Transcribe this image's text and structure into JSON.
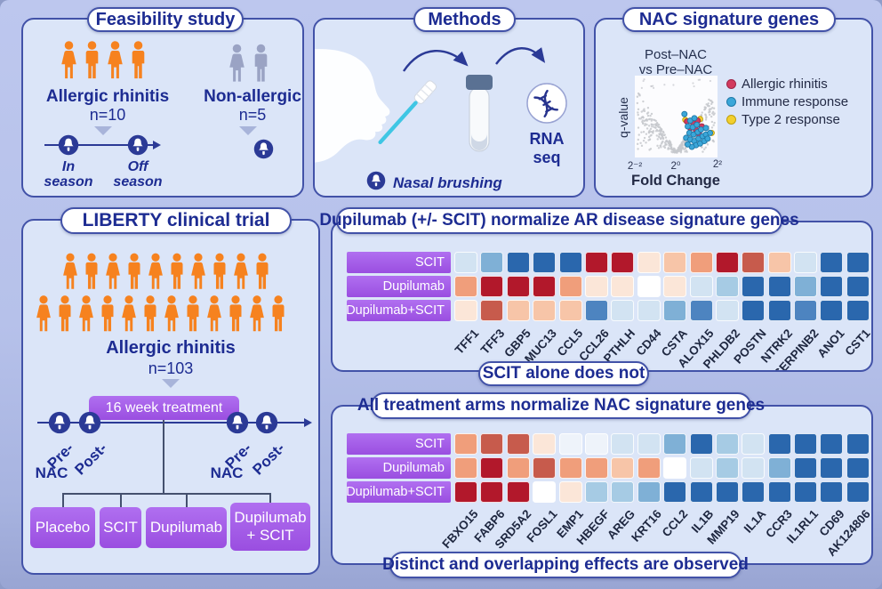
{
  "colors": {
    "navy": "#1d2c92",
    "panel_border": "#4252a8",
    "panel_bg": "#dbe5f8",
    "purple": "#a35ce6",
    "orange": "#f6821f",
    "gray_person": "#9aa3c4",
    "connector": "#44506e",
    "triangle": "#a8b4da",
    "brush_cyan": "#3fc6e4",
    "legend_red": "#d23a5e",
    "legend_blue": "#3ba7d9",
    "legend_yellow": "#f2cf2e",
    "heat": {
      "DR": "#b2182b",
      "MR": "#c75b4c",
      "SA": "#f09e7b",
      "LP": "#f7c5a8",
      "VP": "#fbe6d8",
      "WH": "#ffffff",
      "VB": "#eef3fa",
      "PB": "#d2e3f2",
      "LB": "#a6cbe4",
      "SB": "#7fb0d6",
      "MB": "#4d84c0",
      "DB": "#2a67ad"
    }
  },
  "panels": {
    "feasibility": {
      "title": "Feasibility study",
      "allergic_label": "Allergic rhinitis",
      "allergic_n": "n=10",
      "nonallergic_label": "Non-allergic",
      "nonallergic_n": "n=5",
      "in_1": "In",
      "in_2": "season",
      "off_1": "Off",
      "off_2": "season",
      "allergic_people": [
        "F",
        "M",
        "F",
        "M"
      ],
      "nonallergic_people": [
        "F",
        "M"
      ]
    },
    "methods": {
      "title": "Methods",
      "rna_1": "RNA",
      "rna_2": "seq",
      "caption": "Nasal brushing"
    },
    "nac": {
      "title": "NAC signature genes"
    },
    "liberty": {
      "title": "LIBERTY clinical trial",
      "label": "Allergic rhinitis",
      "n": "n=103",
      "row1": [
        "F",
        "M",
        "F",
        "M",
        "F",
        "M",
        "F",
        "M",
        "F",
        "M"
      ],
      "row2": [
        "F",
        "M",
        "F",
        "M",
        "F",
        "M",
        "F",
        "M",
        "F",
        "M",
        "F",
        "M"
      ],
      "treatment": "16 week treatment",
      "pre": "Pre-",
      "post": "Post-",
      "nac": "NAC",
      "arms": [
        "Placebo",
        "SCIT",
        "Dupilumab",
        "Dupilumab + SCIT"
      ]
    },
    "heatmap_ar": {
      "title": "Dupilumab (+/- SCIT) normalize AR disease signature genes",
      "footer": "SCIT alone does not"
    },
    "heatmap_nac": {
      "title": "All treatment arms normalize NAC signature genes",
      "footer": "Distinct and overlapping effects are observed"
    }
  },
  "chart_data": [
    {
      "type": "scatter",
      "name": "volcano_post_vs_pre_nac",
      "title_line1": "Post–NAC",
      "title_line2": "vs Pre–NAC",
      "xlabel": "Fold Change",
      "ylabel": "q-value",
      "x_ticks": [
        "2⁻²",
        "2⁰",
        "2²"
      ],
      "note": "point positions estimated in relative plot units (x 0-1 left to right, y 0-1 top to bottom)",
      "series": [
        {
          "name": "Allergic rhinitis",
          "color": "#d23a5e",
          "stroke": "#9e2547",
          "points": [
            [
              0.63,
              0.56
            ],
            [
              0.7,
              0.57
            ],
            [
              0.76,
              0.55
            ],
            [
              0.67,
              0.64
            ],
            [
              0.74,
              0.66
            ],
            [
              0.81,
              0.62
            ],
            [
              0.78,
              0.72
            ]
          ]
        },
        {
          "name": "Immune response",
          "color": "#3ba7d9",
          "stroke": "#1f79a8",
          "points": [
            [
              0.6,
              0.47
            ],
            [
              0.67,
              0.55
            ],
            [
              0.72,
              0.52
            ],
            [
              0.64,
              0.62
            ],
            [
              0.7,
              0.63
            ],
            [
              0.75,
              0.6
            ],
            [
              0.66,
              0.7
            ],
            [
              0.71,
              0.72
            ],
            [
              0.76,
              0.69
            ],
            [
              0.8,
              0.66
            ],
            [
              0.62,
              0.76
            ],
            [
              0.67,
              0.78
            ],
            [
              0.72,
              0.8
            ],
            [
              0.77,
              0.77
            ],
            [
              0.82,
              0.74
            ],
            [
              0.86,
              0.72
            ],
            [
              0.74,
              0.85
            ],
            [
              0.79,
              0.83
            ],
            [
              0.84,
              0.8
            ],
            [
              0.88,
              0.77
            ],
            [
              0.69,
              0.87
            ],
            [
              0.64,
              0.84
            ],
            [
              0.91,
              0.7
            ],
            [
              0.86,
              0.64
            ]
          ]
        },
        {
          "name": "Type 2 response",
          "color": "#f2cf2e",
          "stroke": "#bfa00e",
          "points": [
            [
              0.61,
              0.54
            ],
            [
              0.79,
              0.53
            ],
            [
              0.93,
              0.7
            ]
          ]
        }
      ],
      "background": {
        "color": "#c6c8cd",
        "n": 430,
        "seed": 7,
        "shape": "volcano"
      }
    },
    {
      "type": "heatmap",
      "name": "ar_disease_signature_genes",
      "rows": [
        "SCIT",
        "Dupilumab",
        "Dupilumab+SCIT"
      ],
      "columns": [
        "TFF1",
        "TFF3",
        "GBP5",
        "MUC13",
        "CCL5",
        "CCL26",
        "PTHLH",
        "CD44",
        "CSTA",
        "ALOX15",
        "PHLDB2",
        "POSTN",
        "NTRK2",
        "SERPINB2",
        "ANO1",
        "CST1"
      ],
      "values": [
        [
          "PB",
          "SB",
          "DB",
          "DB",
          "DB",
          "DR",
          "DR",
          "VP",
          "LP",
          "SA",
          "DR",
          "MR",
          "LP",
          "PB",
          "DB",
          "DB"
        ],
        [
          "SA",
          "DR",
          "DR",
          "DR",
          "SA",
          "VP",
          "VP",
          "WH",
          "VP",
          "PB",
          "LB",
          "DB",
          "DB",
          "SB",
          "DB",
          "DB"
        ],
        [
          "VP",
          "MR",
          "LP",
          "LP",
          "LP",
          "MB",
          "PB",
          "PB",
          "SB",
          "MB",
          "PB",
          "DB",
          "DB",
          "MB",
          "DB",
          "DB"
        ]
      ],
      "scale_note": "qualitative red-blue tokens: DR darkest red, DB darkest blue"
    },
    {
      "type": "heatmap",
      "name": "nac_signature_genes",
      "rows": [
        "SCIT",
        "Dupilumab",
        "Dupilumab+SCIT"
      ],
      "columns": [
        "FBXO15",
        "FABP6",
        "SRD5A2",
        "FOSL1",
        "EMP1",
        "HBEGF",
        "AREG",
        "KRT16",
        "CCL2",
        "IL1B",
        "MMP19",
        "IL1A",
        "CCR3",
        "IL1RL1",
        "CD69",
        "AK124806"
      ],
      "values": [
        [
          "SA",
          "MR",
          "MR",
          "VP",
          "VB",
          "VB",
          "PB",
          "PB",
          "SB",
          "DB",
          "LB",
          "PB",
          "DB",
          "DB",
          "DB",
          "DB"
        ],
        [
          "SA",
          "DR",
          "SA",
          "MR",
          "SA",
          "SA",
          "LP",
          "SA",
          "WH",
          "PB",
          "LB",
          "PB",
          "SB",
          "DB",
          "DB",
          "DB"
        ],
        [
          "DR",
          "DR",
          "DR",
          "WH",
          "VP",
          "LB",
          "LB",
          "SB",
          "DB",
          "DB",
          "DB",
          "DB",
          "DB",
          "DB",
          "DB",
          "DB"
        ]
      ],
      "scale_note": "qualitative red-blue tokens: DR darkest red, DB darkest blue"
    }
  ]
}
